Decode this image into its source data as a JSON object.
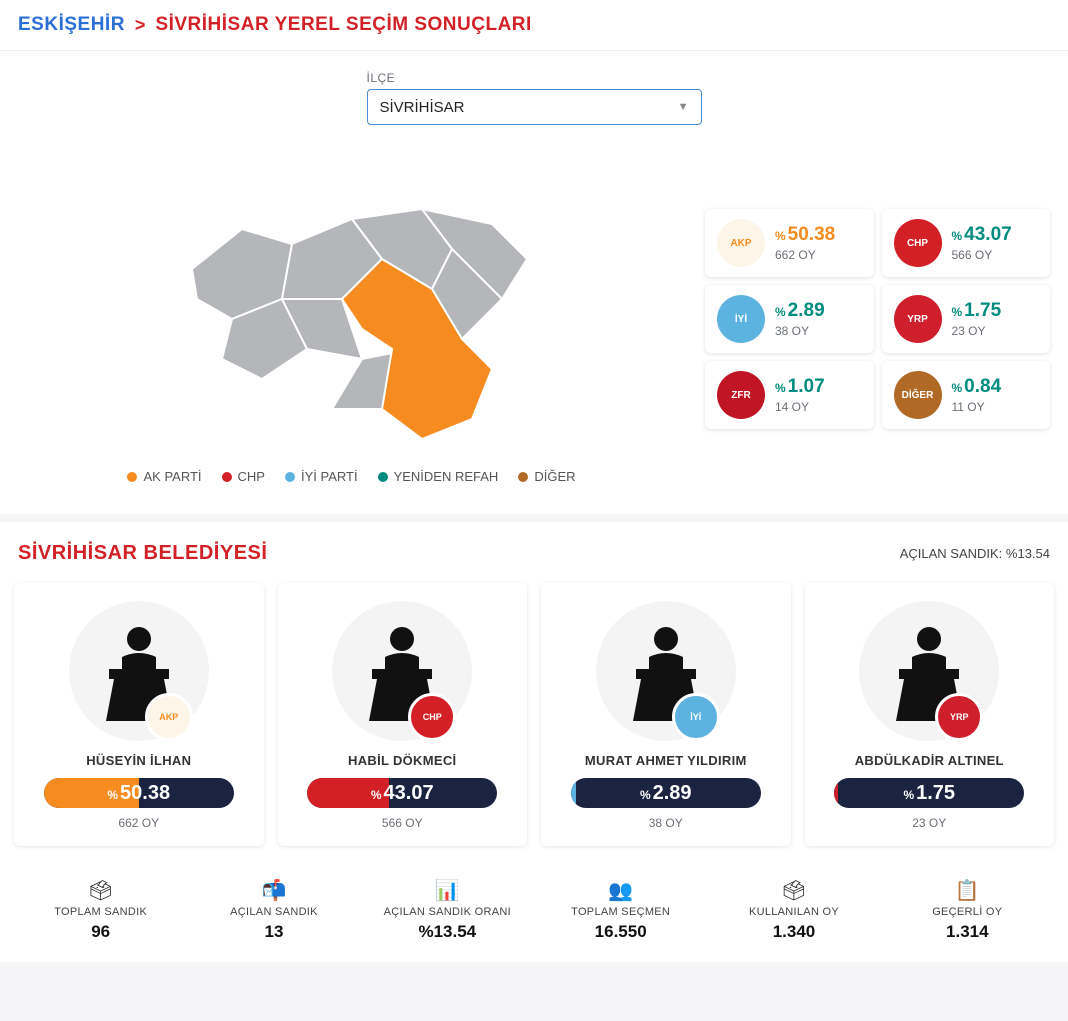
{
  "breadcrumb": {
    "province": "ESKİŞEHİR",
    "sep": ">",
    "title": "SİVRİHİSAR YEREL SEÇİM SONUÇLARI"
  },
  "select": {
    "label": "İLÇE",
    "value": "SİVRİHİSAR"
  },
  "colors": {
    "ak": "#f68b1f",
    "chp": "#d32027",
    "iyi": "#5cb3e0",
    "yr": "#cf1e2c",
    "zafer": "#c01524",
    "diger": "#b06a25",
    "yr_alt": "#008c7e",
    "map_base": "#b4b6ba",
    "map_highlight": "#f68b1f",
    "bar_bg": "#1a2340",
    "breadcrumb_province": "#2a6fd6",
    "breadcrumb_title": "#d32027",
    "pct_green": "#008c7e"
  },
  "legend": [
    {
      "label": "AK PARTİ",
      "color": "#f68b1f"
    },
    {
      "label": "CHP",
      "color": "#d32027"
    },
    {
      "label": "İYİ PARTİ",
      "color": "#5cb3e0"
    },
    {
      "label": "YENİDEN REFAH",
      "color": "#008c7e"
    },
    {
      "label": "DİĞER",
      "color": "#b06a25"
    }
  ],
  "parties": [
    {
      "pct": "50.38",
      "votes": "662 OY",
      "pct_color": "#f68b1f",
      "logo_bg": "#fdf6e8",
      "logo_text": "AKP",
      "logo_fg": "#f68b1f"
    },
    {
      "pct": "43.07",
      "votes": "566 OY",
      "pct_color": "#008c7e",
      "logo_bg": "#d32027",
      "logo_text": "CHP",
      "logo_fg": "#ffffff"
    },
    {
      "pct": "2.89",
      "votes": "38 OY",
      "pct_color": "#008c7e",
      "logo_bg": "#5cb3e0",
      "logo_text": "İYİ",
      "logo_fg": "#ffffff"
    },
    {
      "pct": "1.75",
      "votes": "23 OY",
      "pct_color": "#008c7e",
      "logo_bg": "#cf1e2c",
      "logo_text": "YRP",
      "logo_fg": "#ffffff"
    },
    {
      "pct": "1.07",
      "votes": "14 OY",
      "pct_color": "#008c7e",
      "logo_bg": "#c01524",
      "logo_text": "ZFR",
      "logo_fg": "#ffffff"
    },
    {
      "pct": "0.84",
      "votes": "11 OY",
      "pct_color": "#008c7e",
      "logo_bg": "#b06a25",
      "logo_text": "DİĞER",
      "logo_fg": "#ffffff"
    }
  ],
  "section2": {
    "title": "SİVRİHİSAR BELEDİYESİ",
    "opened": "AÇILAN SANDIK: %13.54"
  },
  "candidates": [
    {
      "name": "HÜSEYİN İLHAN",
      "pct": "50.38",
      "votes": "662 OY",
      "fill_pct": 50.38,
      "fill_color": "#f68b1f",
      "badge_bg": "#fdf6e8",
      "badge_text": "AKP",
      "badge_fg": "#f68b1f"
    },
    {
      "name": "HABİL DÖKMECİ",
      "pct": "43.07",
      "votes": "566 OY",
      "fill_pct": 43.07,
      "fill_color": "#d32027",
      "badge_bg": "#d32027",
      "badge_text": "CHP",
      "badge_fg": "#ffffff"
    },
    {
      "name": "MURAT AHMET YILDIRIM",
      "pct": "2.89",
      "votes": "38 OY",
      "fill_pct": 2.89,
      "fill_color": "#5cb3e0",
      "badge_bg": "#5cb3e0",
      "badge_text": "İYİ",
      "badge_fg": "#ffffff"
    },
    {
      "name": "ABDÜLKADİR ALTINEL",
      "pct": "1.75",
      "votes": "23 OY",
      "fill_pct": 1.75,
      "fill_color": "#cf1e2c",
      "badge_bg": "#cf1e2c",
      "badge_text": "YRP",
      "badge_fg": "#ffffff"
    }
  ],
  "stats": [
    {
      "label": "TOPLAM SANDIK",
      "value": "96",
      "icon": "🗳"
    },
    {
      "label": "AÇILAN SANDIK",
      "value": "13",
      "icon": "📬"
    },
    {
      "label": "AÇILAN SANDIK ORANI",
      "value": "%13.54",
      "icon": "📊"
    },
    {
      "label": "TOPLAM SEÇMEN",
      "value": "16.550",
      "icon": "👥"
    },
    {
      "label": "KULLANILAN OY",
      "value": "1.340",
      "icon": "🗳"
    },
    {
      "label": "GEÇERLİ OY",
      "value": "1.314",
      "icon": "📋"
    }
  ]
}
